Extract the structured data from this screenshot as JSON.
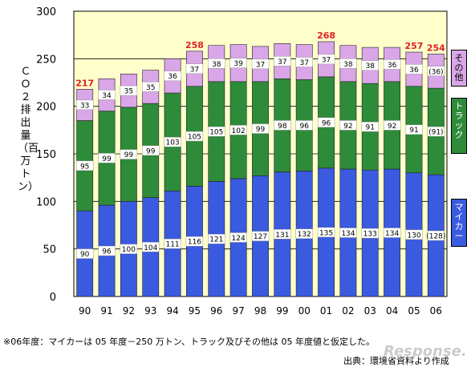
{
  "chart_data": {
    "type": "bar",
    "stacked": true,
    "ylabel": "ＣＯ２排出量（百万トン）",
    "ylim": [
      0,
      300
    ],
    "yticks": [
      0,
      50,
      100,
      150,
      200,
      250,
      300
    ],
    "categories": [
      "90",
      "91",
      "92",
      "93",
      "94",
      "95",
      "96",
      "97",
      "98",
      "99",
      "00",
      "01",
      "02",
      "03",
      "04",
      "05",
      "06"
    ],
    "series": [
      {
        "name": "マイカー",
        "color": "#3a5ae0",
        "values": [
          90,
          96,
          100,
          104,
          111,
          116,
          121,
          124,
          127,
          131,
          132,
          135,
          134,
          133,
          134,
          130,
          128
        ],
        "labels": [
          "90",
          "96",
          "100",
          "104",
          "111",
          "116",
          "121",
          "124",
          "127",
          "131",
          "132",
          "135",
          "134",
          "133",
          "134",
          "130",
          "(128)"
        ]
      },
      {
        "name": "トラック",
        "color": "#2e8b3a",
        "values": [
          95,
          99,
          99,
          99,
          103,
          105,
          105,
          102,
          99,
          98,
          96,
          96,
          92,
          91,
          92,
          91,
          91
        ],
        "labels": [
          "95",
          "99",
          "99",
          "99",
          "103",
          "105",
          "105",
          "102",
          "99",
          "98",
          "96",
          "96",
          "92",
          "91",
          "92",
          "91",
          "(91)"
        ]
      },
      {
        "name": "その他",
        "color": "#d9a6e8",
        "values": [
          33,
          34,
          35,
          35,
          36,
          37,
          38,
          39,
          37,
          37,
          37,
          37,
          38,
          38,
          36,
          36,
          36
        ],
        "labels": [
          "33",
          "34",
          "35",
          "35",
          "36",
          "37",
          "38",
          "39",
          "37",
          "37",
          "37",
          "37",
          "38",
          "38",
          "36",
          "36",
          "(36)"
        ]
      }
    ],
    "total_labels": [
      {
        "index": 0,
        "text": "217"
      },
      {
        "index": 5,
        "text": "258"
      },
      {
        "index": 11,
        "text": "268"
      },
      {
        "index": 15,
        "text": "257"
      },
      {
        "index": 16,
        "text": "254"
      }
    ],
    "colors": {
      "plot_bg": "#ffffcc",
      "total_label": "#e02020"
    }
  },
  "footnote": "※06年度：マイカーは 05 年度－250 万トン、トラック及びその他は 05 年度値と仮定した。",
  "source": "出典：環境省資料より作成",
  "watermark": "Response."
}
